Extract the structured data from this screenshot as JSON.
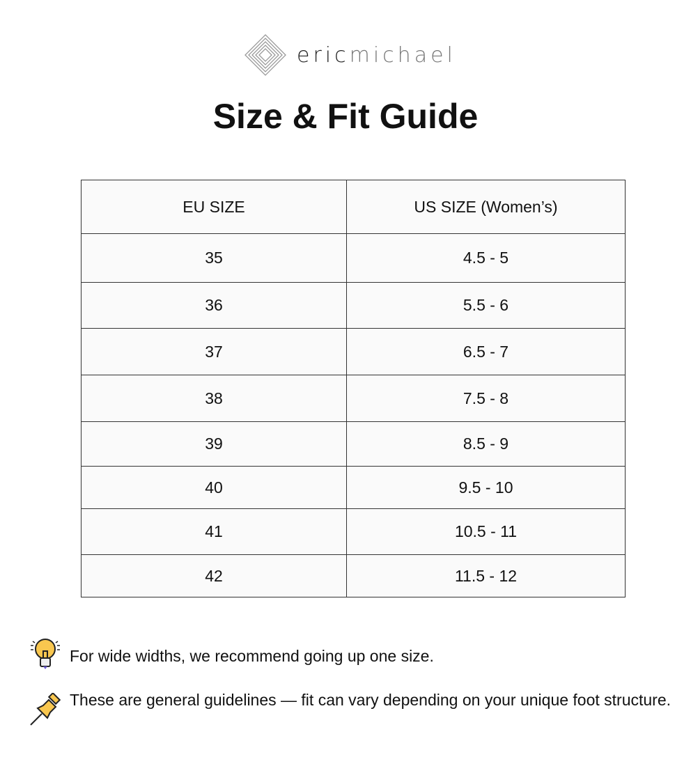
{
  "brand": {
    "part1": "eric",
    "part2": "michael"
  },
  "title": "Size & Fit Guide",
  "table": {
    "headers": [
      "EU SIZE",
      "US SIZE (Women’s)"
    ],
    "rows": [
      [
        "35",
        "4.5 - 5"
      ],
      [
        "36",
        "5.5 - 6"
      ],
      [
        "37",
        "6.5 - 7"
      ],
      [
        "38",
        "7.5 - 8"
      ],
      [
        "39",
        "8.5 - 9"
      ],
      [
        "40",
        "9.5 - 10"
      ],
      [
        "41",
        "10.5 - 11"
      ],
      [
        "42",
        "11.5 - 12"
      ]
    ]
  },
  "notes": [
    {
      "icon": "lightbulb-icon",
      "text": "For wide widths, we recommend going up one size."
    },
    {
      "icon": "pushpin-icon",
      "text": "These are general guidelines — fit can vary depending on your unique foot structure."
    }
  ]
}
